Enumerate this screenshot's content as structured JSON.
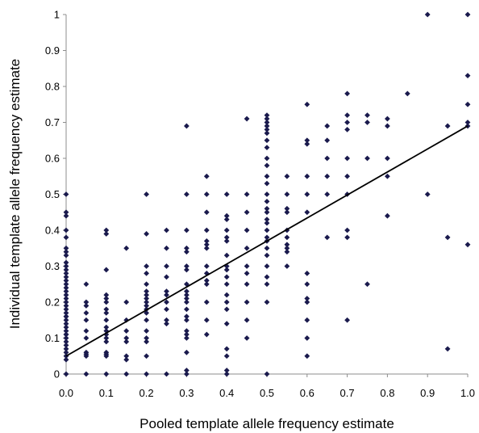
{
  "chart_data": {
    "type": "scatter",
    "title": "",
    "xlabel": "Pooled template allele frequency estimate",
    "ylabel": "Individual template allele frequency estimate",
    "xlim": [
      0,
      1
    ],
    "ylim": [
      0,
      1
    ],
    "x_ticks": [
      "0.0",
      "0.1",
      "0.2",
      "0.3",
      "0.4",
      "0.5",
      "0.6",
      "0.7",
      "0.8",
      "0.9",
      "1.0"
    ],
    "y_ticks": [
      "0",
      "0.1",
      "0.2",
      "0.3",
      "0.4",
      "0.5",
      "0.6",
      "0.7",
      "0.8",
      "0.9",
      "1"
    ],
    "grid": false,
    "legend": "none",
    "marker_color": "#1a1a4d",
    "line_color": "#000000",
    "trendline": {
      "x": [
        0,
        1
      ],
      "y": [
        0.05,
        0.69
      ]
    },
    "series": [
      {
        "x": [
          0,
          0,
          0,
          0,
          0,
          0,
          0,
          0,
          0,
          0,
          0,
          0,
          0,
          0,
          0,
          0,
          0,
          0,
          0,
          0,
          0,
          0,
          0,
          0,
          0,
          0,
          0,
          0,
          0,
          0,
          0,
          0,
          0,
          0,
          0,
          0,
          0,
          0,
          0,
          0.05,
          0.05,
          0.05,
          0.05,
          0.05,
          0.05,
          0.05,
          0.05,
          0.05,
          0.05,
          0.05,
          0.1,
          0.1,
          0.1,
          0.1,
          0.1,
          0.1,
          0.1,
          0.1,
          0.1,
          0.1,
          0.1,
          0.1,
          0.1,
          0.1,
          0.1,
          0.1,
          0.1,
          0.1,
          0.15,
          0.15,
          0.15,
          0.15,
          0.15,
          0.15,
          0.15,
          0.15,
          0.15,
          0.2,
          0.2,
          0.2,
          0.2,
          0.2,
          0.2,
          0.2,
          0.2,
          0.2,
          0.2,
          0.2,
          0.2,
          0.2,
          0.2,
          0.2,
          0.2,
          0.2,
          0.2,
          0.25,
          0.25,
          0.25,
          0.25,
          0.25,
          0.25,
          0.25,
          0.25,
          0.25,
          0.25,
          0.25,
          0.3,
          0.3,
          0.3,
          0.3,
          0.3,
          0.3,
          0.3,
          0.3,
          0.3,
          0.3,
          0.3,
          0.3,
          0.3,
          0.3,
          0.3,
          0.3,
          0.3,
          0.3,
          0.3,
          0.3,
          0.3,
          0.35,
          0.35,
          0.35,
          0.35,
          0.35,
          0.35,
          0.35,
          0.35,
          0.35,
          0.35,
          0.35,
          0.35,
          0.35,
          0.35,
          0.4,
          0.4,
          0.4,
          0.4,
          0.4,
          0.4,
          0.4,
          0.4,
          0.4,
          0.4,
          0.4,
          0.4,
          0.4,
          0.4,
          0.4,
          0.4,
          0.4,
          0.4,
          0.4,
          0.45,
          0.45,
          0.45,
          0.45,
          0.45,
          0.45,
          0.45,
          0.45,
          0.45,
          0.45,
          0.45,
          0.5,
          0.5,
          0.5,
          0.5,
          0.5,
          0.5,
          0.5,
          0.5,
          0.5,
          0.5,
          0.5,
          0.5,
          0.5,
          0.5,
          0.5,
          0.5,
          0.5,
          0.5,
          0.5,
          0.5,
          0.5,
          0.5,
          0.5,
          0.5,
          0.5,
          0.5,
          0.5,
          0.5,
          0.55,
          0.55,
          0.55,
          0.55,
          0.55,
          0.55,
          0.55,
          0.55,
          0.55,
          0.55,
          0.6,
          0.6,
          0.6,
          0.6,
          0.6,
          0.6,
          0.6,
          0.6,
          0.6,
          0.6,
          0.6,
          0.6,
          0.6,
          0.65,
          0.65,
          0.65,
          0.65,
          0.65,
          0.65,
          0.7,
          0.7,
          0.7,
          0.7,
          0.7,
          0.7,
          0.7,
          0.7,
          0.7,
          0.7,
          0.75,
          0.75,
          0.75,
          0.75,
          0.8,
          0.8,
          0.8,
          0.8,
          0.8,
          0.85,
          0.9,
          0.9,
          0.95,
          0.95,
          0.95,
          1,
          1,
          1,
          1,
          1,
          1
        ],
        "y": [
          0.5,
          0.45,
          0.44,
          0.4,
          0.35,
          0.33,
          0.31,
          0.3,
          0.28,
          0.26,
          0.25,
          0.23,
          0.22,
          0.21,
          0.2,
          0.19,
          0.18,
          0.17,
          0.16,
          0.15,
          0.14,
          0.13,
          0.12,
          0.11,
          0.1,
          0.09,
          0.08,
          0.07,
          0.06,
          0.05,
          0.04,
          0,
          0.38,
          0.34,
          0.24,
          0.27,
          0.29,
          0.16,
          0.11,
          0.25,
          0.2,
          0.19,
          0.17,
          0.15,
          0.12,
          0.1,
          0.06,
          0.055,
          0.05,
          0,
          0.4,
          0.39,
          0.29,
          0.22,
          0.21,
          0.2,
          0.18,
          0.17,
          0.15,
          0.13,
          0.12,
          0.11,
          0.1,
          0.09,
          0.06,
          0.055,
          0.05,
          0,
          0.35,
          0.2,
          0.15,
          0.12,
          0.1,
          0.09,
          0.05,
          0.04,
          0,
          0.5,
          0.39,
          0.3,
          0.28,
          0.25,
          0.23,
          0.22,
          0.21,
          0.2,
          0.19,
          0.18,
          0.17,
          0.15,
          0.12,
          0.1,
          0.09,
          0.05,
          0,
          0.4,
          0.35,
          0.3,
          0.27,
          0.23,
          0.22,
          0.2,
          0.18,
          0.15,
          0.14,
          0,
          0.69,
          0.5,
          0.4,
          0.35,
          0.34,
          0.3,
          0.29,
          0.25,
          0.23,
          0.22,
          0.21,
          0.2,
          0.18,
          0.16,
          0.15,
          0.12,
          0.11,
          0.1,
          0.06,
          0.01,
          0,
          0.55,
          0.5,
          0.45,
          0.4,
          0.37,
          0.36,
          0.35,
          0.3,
          0.28,
          0.26,
          0.25,
          0.2,
          0.15,
          0.11,
          0.5,
          0.44,
          0.43,
          0.4,
          0.38,
          0.37,
          0.33,
          0.3,
          0.29,
          0.27,
          0.25,
          0.22,
          0.2,
          0.18,
          0.14,
          0.07,
          0.05,
          0.01,
          0,
          0.71,
          0.5,
          0.45,
          0.4,
          0.35,
          0.3,
          0.28,
          0.25,
          0.2,
          0.15,
          0.1,
          0.72,
          0.71,
          0.7,
          0.69,
          0.68,
          0.67,
          0.65,
          0.63,
          0.6,
          0.58,
          0.55,
          0.53,
          0.5,
          0.48,
          0.46,
          0.45,
          0.43,
          0.42,
          0.4,
          0.38,
          0.37,
          0.35,
          0.33,
          0.3,
          0.27,
          0.25,
          0.2,
          0,
          0.55,
          0.5,
          0.46,
          0.45,
          0.4,
          0.38,
          0.36,
          0.35,
          0.34,
          0.3,
          0.75,
          0.65,
          0.64,
          0.55,
          0.5,
          0.45,
          0.28,
          0.25,
          0.21,
          0.2,
          0.15,
          0.1,
          0.05,
          0.69,
          0.65,
          0.6,
          0.55,
          0.5,
          0.38,
          0.78,
          0.72,
          0.7,
          0.68,
          0.6,
          0.55,
          0.5,
          0.4,
          0.38,
          0.15,
          0.72,
          0.7,
          0.6,
          0.25,
          0.71,
          0.69,
          0.55,
          0.44,
          0.6,
          0.78,
          1,
          0.5,
          0.69,
          0.38,
          0.07,
          1,
          0.83,
          0.75,
          0.7,
          0.36,
          0.69
        ]
      }
    ]
  }
}
